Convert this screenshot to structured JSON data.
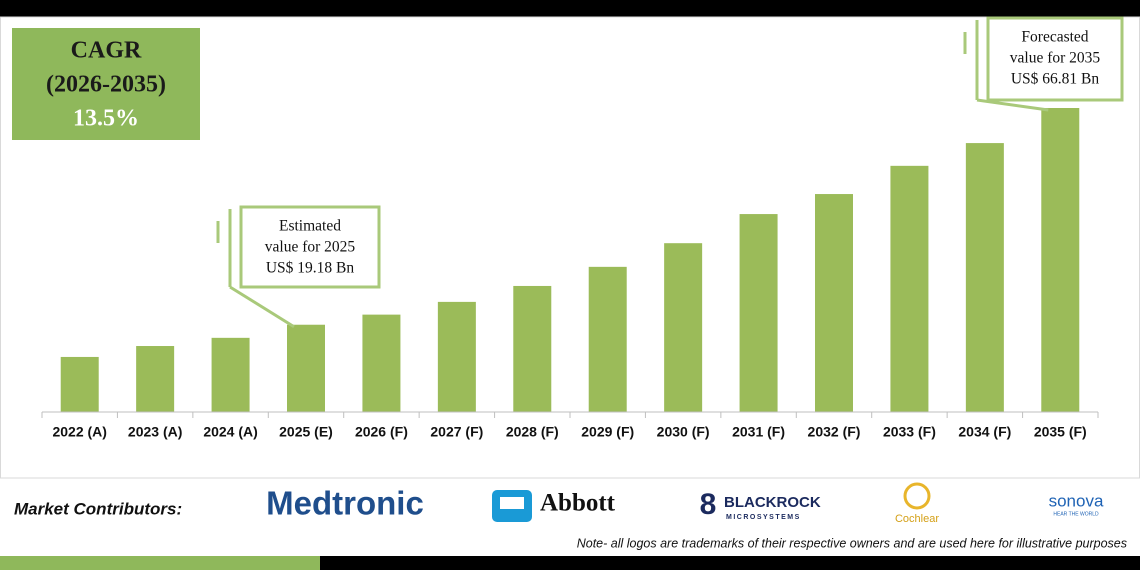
{
  "chart_data": {
    "type": "bar",
    "categories": [
      "2022 (A)",
      "2023 (A)",
      "2024 (A)",
      "2025 (E)",
      "2026 (F)",
      "2027 (F)",
      "2028 (F)",
      "2029 (F)",
      "2030 (F)",
      "2031 (F)",
      "2032 (F)",
      "2033 (F)",
      "2034 (F)",
      "2035 (F)"
    ],
    "values": [
      12.1,
      14.5,
      16.3,
      19.18,
      21.4,
      24.2,
      27.7,
      31.9,
      37.1,
      43.5,
      47.9,
      54.1,
      59.1,
      66.81
    ],
    "color": "#9bbb59",
    "annotations": [
      {
        "lines": [
          "Estimated",
          "value for 2025",
          "US$ 19.18 Bn"
        ],
        "category": 3
      },
      {
        "lines": [
          "Forecasted",
          "value for 2035",
          "US$ 66.81 Bn"
        ],
        "category": 13
      }
    ]
  },
  "cagr": {
    "label": "CAGR",
    "period": "(2026-2035)",
    "value": "13.5%"
  },
  "contributors": {
    "label": "Market Contributors:",
    "logos": [
      "Medtronic",
      "Abbott",
      "BLACKROCK",
      "MICROSYSTEMS",
      "Cochlear",
      "sonova",
      "HEAR THE WORLD"
    ]
  },
  "note": "Note- all logos are trademarks of their respective owners and are used here for illustrative purposes"
}
